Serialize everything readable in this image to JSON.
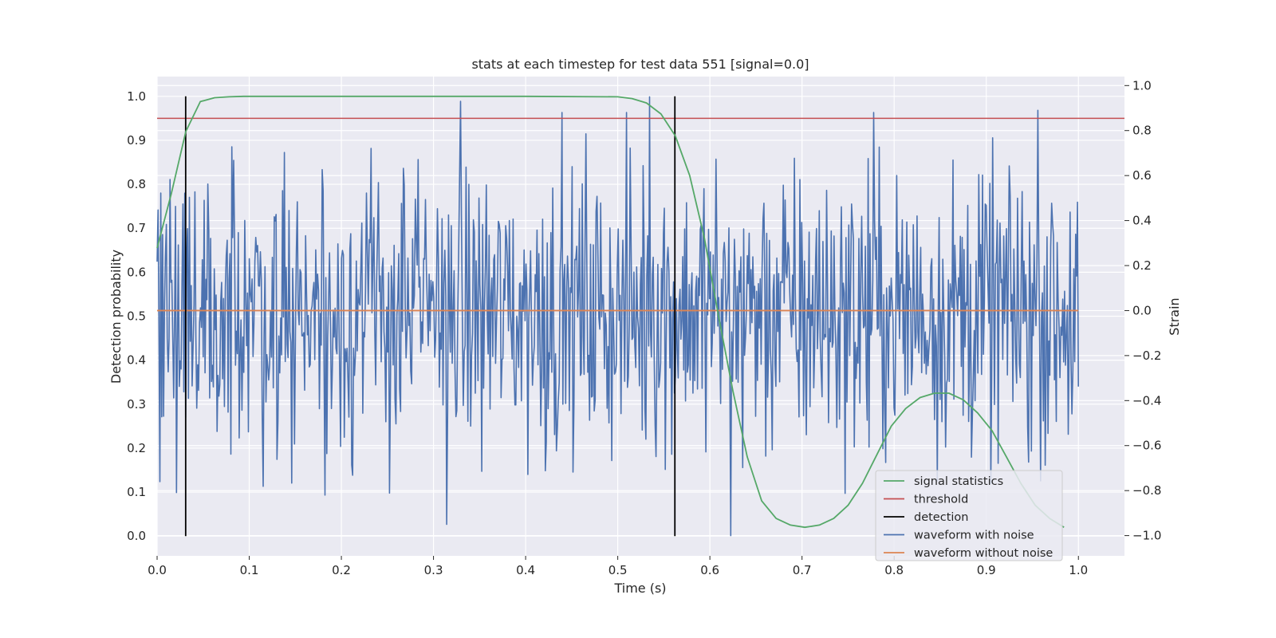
{
  "chart_data": {
    "type": "line",
    "title": "stats at each timestep for test data 551 [signal=0.0]",
    "xlabel": "Time (s)",
    "ylabel_left": "Detection probability",
    "ylabel_right": "Strain",
    "xlim": [
      0.0,
      1.05
    ],
    "ylim_left": [
      -0.045,
      1.045
    ],
    "ylim_right": [
      -1.09,
      1.04
    ],
    "x_ticks": [
      0.0,
      0.1,
      0.2,
      0.3,
      0.4,
      0.5,
      0.6,
      0.7,
      0.8,
      0.9,
      1.0
    ],
    "x_tick_labels": [
      "0.0",
      "0.1",
      "0.2",
      "0.3",
      "0.4",
      "0.5",
      "0.6",
      "0.7",
      "0.8",
      "0.9",
      "1.0"
    ],
    "y_ticks_left": [
      0.0,
      0.1,
      0.2,
      0.3,
      0.4,
      0.5,
      0.6,
      0.7,
      0.8,
      0.9,
      1.0
    ],
    "y_tick_labels_left": [
      "0.0",
      "0.1",
      "0.2",
      "0.3",
      "0.4",
      "0.5",
      "0.6",
      "0.7",
      "0.8",
      "0.9",
      "1.0"
    ],
    "y_ticks_right": [
      -1.0,
      -0.8,
      -0.6,
      -0.4,
      -0.2,
      0.0,
      0.2,
      0.4,
      0.6,
      0.8,
      1.0
    ],
    "y_tick_labels_right": [
      "−1.0",
      "−0.8",
      "−0.6",
      "−0.4",
      "−0.2",
      "0.0",
      "0.2",
      "0.4",
      "0.6",
      "0.8",
      "1.0"
    ],
    "grid": true,
    "legend_position": "lower-right",
    "series": [
      {
        "name": "signal statistics",
        "axis": "left",
        "color": "#55a868",
        "x": [
          0.0,
          0.0156,
          0.0312,
          0.0469,
          0.0625,
          0.0781,
          0.0938,
          0.1094,
          0.125,
          0.2,
          0.3,
          0.4,
          0.5,
          0.5156,
          0.5312,
          0.5469,
          0.5625,
          0.5781,
          0.5938,
          0.6094,
          0.625,
          0.6406,
          0.6562,
          0.6719,
          0.6875,
          0.7031,
          0.7188,
          0.7344,
          0.75,
          0.7656,
          0.7812,
          0.7969,
          0.8125,
          0.8281,
          0.8438,
          0.8594,
          0.875,
          0.8906,
          0.9062,
          0.9219,
          0.9375,
          0.9531,
          0.9688,
          0.9844
        ],
        "y": [
          0.655,
          0.78,
          0.92,
          0.988,
          0.997,
          0.999,
          1.0,
          1.0,
          1.0,
          1.0,
          1.0,
          1.0,
          0.999,
          0.995,
          0.985,
          0.96,
          0.91,
          0.82,
          0.68,
          0.5,
          0.33,
          0.18,
          0.08,
          0.04,
          0.025,
          0.02,
          0.025,
          0.04,
          0.07,
          0.12,
          0.185,
          0.25,
          0.29,
          0.315,
          0.325,
          0.325,
          0.31,
          0.28,
          0.24,
          0.18,
          0.12,
          0.07,
          0.04,
          0.02
        ]
      },
      {
        "name": "threshold",
        "axis": "left",
        "color": "#c44e52",
        "x": [
          0.0,
          1.05
        ],
        "y": [
          0.95,
          0.95
        ]
      },
      {
        "name": "detection",
        "axis": "left",
        "color": "#000000",
        "x": [
          0.031,
          0.562
        ],
        "y_range": [
          0.0,
          1.0
        ]
      },
      {
        "name": "waveform with noise",
        "axis": "right",
        "color": "#4c72b0",
        "n_points": 1000,
        "x_range": [
          0.0,
          1.0
        ],
        "y_range": [
          -1.0,
          1.0
        ],
        "peaks": [
          {
            "x": 0.329,
            "y": 0.93
          },
          {
            "x": 0.535,
            "y": 0.95
          },
          {
            "x": 0.623,
            "y": -1.0
          },
          {
            "x": 0.182,
            "y": -0.82
          },
          {
            "x": 0.003,
            "y": -0.76
          },
          {
            "x": 0.778,
            "y": 0.88
          },
          {
            "x": 0.956,
            "y": 0.89
          }
        ]
      },
      {
        "name": "waveform without noise",
        "axis": "right",
        "color": "#dd8452",
        "x": [
          0.0,
          1.0
        ],
        "y": [
          0.0,
          0.0
        ]
      }
    ]
  }
}
